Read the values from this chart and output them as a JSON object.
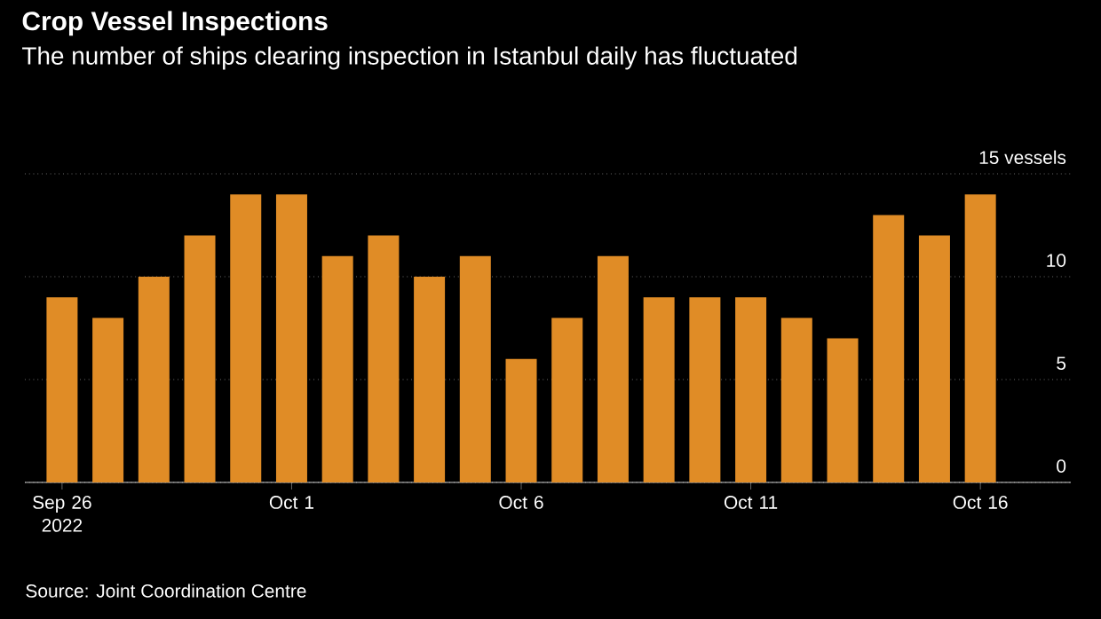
{
  "chart_data": {
    "type": "bar",
    "title": "Crop Vessel Inspections",
    "subtitle": "The number of ships clearing inspection in Istanbul daily has fluctuated",
    "categories": [
      "Sep 26 2022",
      null,
      null,
      null,
      null,
      "Oct 1",
      null,
      null,
      null,
      null,
      "Oct 6",
      null,
      null,
      null,
      null,
      "Oct 11",
      null,
      null,
      null,
      null,
      "Oct 16"
    ],
    "values": [
      9,
      8,
      10,
      12,
      14,
      14,
      11,
      12,
      10,
      11,
      6,
      8,
      11,
      9,
      9,
      9,
      8,
      7,
      13,
      12,
      14
    ],
    "color": "#e08c26",
    "ylim": [
      0,
      15
    ],
    "yticks": [
      0,
      5,
      10,
      {
        "value": 15,
        "label": "15 vessels"
      }
    ],
    "grid": "y",
    "annotations": [
      "Source: Joint Coordination Centre"
    ]
  }
}
